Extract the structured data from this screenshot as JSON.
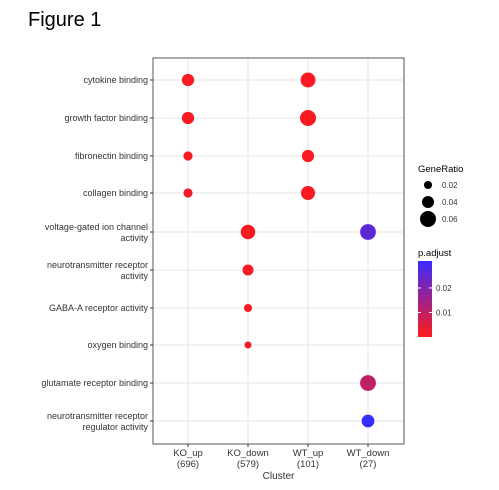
{
  "figure_title": "Figure 1",
  "chart_data": {
    "type": "scatter",
    "subtype": "dot-plot",
    "xlabel": "Cluster",
    "ylabel": "",
    "grid": true,
    "legend_placement": "right",
    "categories_x": [
      {
        "label": "KO_up",
        "count": "(696)"
      },
      {
        "label": "KO_down",
        "count": "(579)"
      },
      {
        "label": "WT_up",
        "count": "(101)"
      },
      {
        "label": "WT_down",
        "count": "(27)"
      }
    ],
    "categories_y": [
      [
        "cytokine binding"
      ],
      [
        "growth factor binding"
      ],
      [
        "fibronectin binding"
      ],
      [
        "collagen binding"
      ],
      [
        "voltage-gated ion channel",
        "activity"
      ],
      [
        "neurotransmitter receptor",
        "activity"
      ],
      [
        "GABA-A receptor activity"
      ],
      [
        "oxygen binding"
      ],
      [
        "glutamate receptor binding"
      ],
      [
        "neurotransmitter receptor",
        "regulator activity"
      ]
    ],
    "points": [
      {
        "x": 0,
        "y": 0,
        "gene_ratio": 0.045,
        "p_adjust": 0.001
      },
      {
        "x": 0,
        "y": 1,
        "gene_ratio": 0.045,
        "p_adjust": 0.001
      },
      {
        "x": 0,
        "y": 2,
        "gene_ratio": 0.028,
        "p_adjust": 0.001
      },
      {
        "x": 0,
        "y": 3,
        "gene_ratio": 0.028,
        "p_adjust": 0.002
      },
      {
        "x": 1,
        "y": 4,
        "gene_ratio": 0.058,
        "p_adjust": 0.001
      },
      {
        "x": 1,
        "y": 5,
        "gene_ratio": 0.038,
        "p_adjust": 0.001
      },
      {
        "x": 1,
        "y": 6,
        "gene_ratio": 0.022,
        "p_adjust": 0.001
      },
      {
        "x": 1,
        "y": 7,
        "gene_ratio": 0.016,
        "p_adjust": 0.002
      },
      {
        "x": 2,
        "y": 0,
        "gene_ratio": 0.06,
        "p_adjust": 0.001
      },
      {
        "x": 2,
        "y": 1,
        "gene_ratio": 0.066,
        "p_adjust": 0.001
      },
      {
        "x": 2,
        "y": 2,
        "gene_ratio": 0.045,
        "p_adjust": 0.001
      },
      {
        "x": 2,
        "y": 3,
        "gene_ratio": 0.055,
        "p_adjust": 0.001
      },
      {
        "x": 3,
        "y": 4,
        "gene_ratio": 0.065,
        "p_adjust": 0.025
      },
      {
        "x": 3,
        "y": 8,
        "gene_ratio": 0.065,
        "p_adjust": 0.01
      },
      {
        "x": 3,
        "y": 9,
        "gene_ratio": 0.048,
        "p_adjust": 0.031
      }
    ],
    "size_legend": {
      "title": "GeneRatio",
      "values": [
        0.02,
        0.04,
        0.06
      ],
      "labels": [
        "0.02",
        "0.04",
        "0.06"
      ]
    },
    "color_legend": {
      "title": "p.adjust",
      "range": [
        0.0,
        0.031
      ],
      "ticks": [
        0.01,
        0.02
      ],
      "tick_labels": [
        "0.01",
        "0.02"
      ],
      "low_color": "#ff1a1a",
      "high_color": "#3a2bff"
    },
    "colors": {
      "panel_border": "#555555",
      "grid_line": "#e6e6e6",
      "text": "#333333"
    }
  }
}
